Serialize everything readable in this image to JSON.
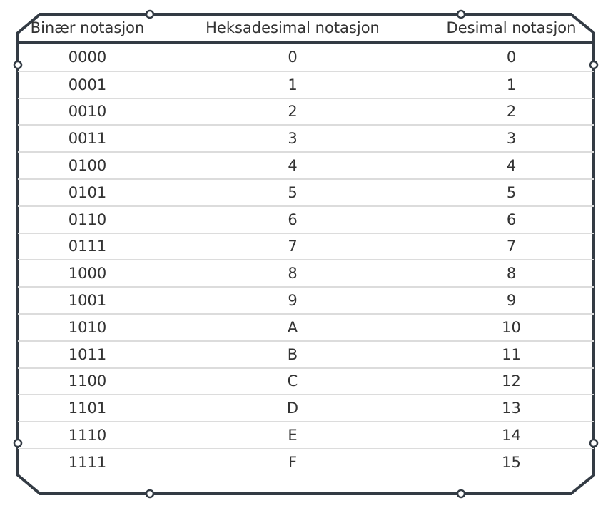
{
  "headers": {
    "binary": "Binær notasjon",
    "hex": "Heksadesimal notasjon",
    "decimal": "Desimal notasjon"
  },
  "rows": [
    {
      "binary": "0000",
      "hex": "0",
      "decimal": "0"
    },
    {
      "binary": "0001",
      "hex": "1",
      "decimal": "1"
    },
    {
      "binary": "0010",
      "hex": "2",
      "decimal": "2"
    },
    {
      "binary": "0011",
      "hex": "3",
      "decimal": "3"
    },
    {
      "binary": "0100",
      "hex": "4",
      "decimal": "4"
    },
    {
      "binary": "0101",
      "hex": "5",
      "decimal": "5"
    },
    {
      "binary": "0110",
      "hex": "6",
      "decimal": "6"
    },
    {
      "binary": "0111",
      "hex": "7",
      "decimal": "7"
    },
    {
      "binary": "1000",
      "hex": "8",
      "decimal": "8"
    },
    {
      "binary": "1001",
      "hex": "9",
      "decimal": "9"
    },
    {
      "binary": "1010",
      "hex": "A",
      "decimal": "10"
    },
    {
      "binary": "1011",
      "hex": "B",
      "decimal": "11"
    },
    {
      "binary": "1100",
      "hex": "C",
      "decimal": "12"
    },
    {
      "binary": "1101",
      "hex": "D",
      "decimal": "13"
    },
    {
      "binary": "1110",
      "hex": "E",
      "decimal": "14"
    },
    {
      "binary": "1111",
      "hex": "F",
      "decimal": "15"
    }
  ],
  "colors": {
    "frame": "#333b44",
    "row_divider": "#dcdcdc",
    "text": "#333333"
  }
}
